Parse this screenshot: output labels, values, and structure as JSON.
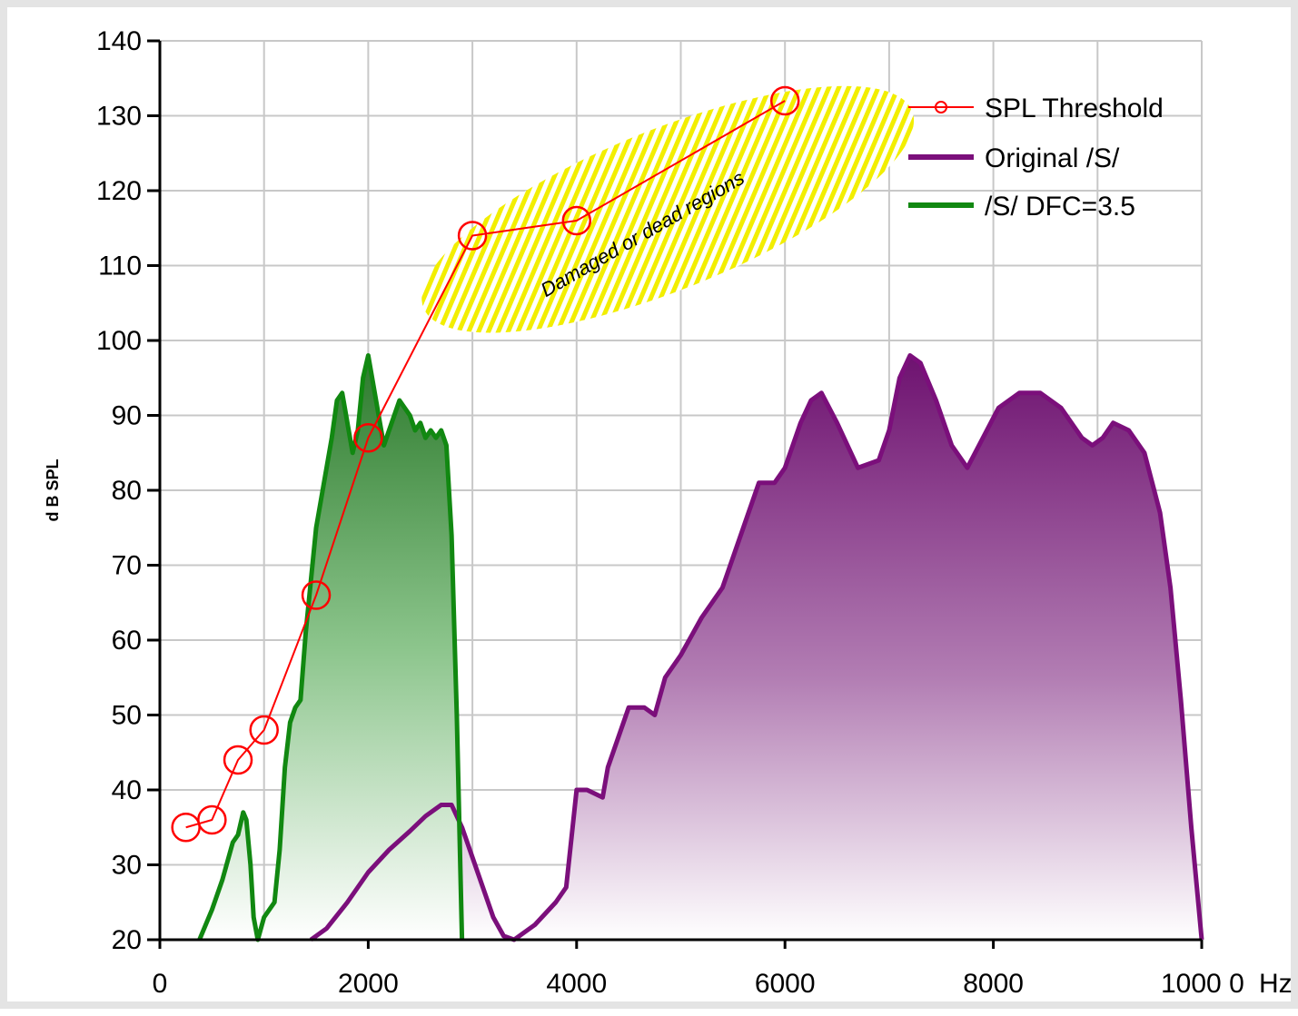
{
  "chart_data": {
    "type": "line",
    "xlabel": "",
    "ylabel": "d B SPL",
    "xlim": [
      0,
      10000
    ],
    "ylim": [
      20,
      140
    ],
    "x_unit_label": "Hz",
    "x_ticks": [
      0,
      2000,
      4000,
      6000,
      8000,
      10000
    ],
    "x_tick_labels": [
      "0",
      "2000",
      "4000",
      "6000",
      "8000",
      "1000 0"
    ],
    "y_ticks": [
      20,
      30,
      40,
      50,
      60,
      70,
      80,
      90,
      100,
      110,
      120,
      130,
      140
    ],
    "y_tick_labels": [
      "20",
      "30",
      "40",
      "50",
      "60",
      "70",
      "80",
      "90",
      "100",
      "110",
      "120",
      "130",
      "140"
    ],
    "grid": true,
    "legend_position": "top-right",
    "annotation": "Damaged or dead regions",
    "colors": {
      "threshold": "#ff0000",
      "original": "#7b0f7b",
      "dfc": "#118811",
      "highlight": "#f2ee00"
    },
    "series": [
      {
        "name": "SPL Threshold",
        "style": "line-marker",
        "points": [
          [
            250,
            35
          ],
          [
            500,
            36
          ],
          [
            750,
            44
          ],
          [
            1000,
            48
          ],
          [
            1500,
            66
          ],
          [
            2000,
            87
          ],
          [
            3000,
            114
          ],
          [
            4000,
            116
          ],
          [
            6000,
            132
          ]
        ]
      },
      {
        "name": "Original /S/",
        "style": "filled-line",
        "points": [
          [
            1450,
            20
          ],
          [
            1600,
            21.5
          ],
          [
            1800,
            25
          ],
          [
            2000,
            29
          ],
          [
            2200,
            32
          ],
          [
            2400,
            34.5
          ],
          [
            2550,
            36.5
          ],
          [
            2700,
            38
          ],
          [
            2800,
            38
          ],
          [
            2900,
            35
          ],
          [
            3000,
            31
          ],
          [
            3100,
            27
          ],
          [
            3200,
            23
          ],
          [
            3300,
            20.5
          ],
          [
            3400,
            20
          ],
          [
            3500,
            21
          ],
          [
            3600,
            22
          ],
          [
            3700,
            23.5
          ],
          [
            3800,
            25
          ],
          [
            3900,
            27
          ],
          [
            4000,
            40
          ],
          [
            4100,
            40
          ],
          [
            4250,
            39
          ],
          [
            4300,
            43
          ],
          [
            4400,
            47
          ],
          [
            4500,
            51
          ],
          [
            4650,
            51
          ],
          [
            4750,
            50
          ],
          [
            4850,
            55
          ],
          [
            5000,
            58
          ],
          [
            5200,
            63
          ],
          [
            5400,
            67
          ],
          [
            5600,
            75
          ],
          [
            5750,
            81
          ],
          [
            5900,
            81
          ],
          [
            6000,
            83
          ],
          [
            6150,
            89
          ],
          [
            6250,
            92
          ],
          [
            6350,
            93
          ],
          [
            6500,
            89
          ],
          [
            6700,
            83
          ],
          [
            6900,
            84
          ],
          [
            7000,
            88
          ],
          [
            7100,
            95
          ],
          [
            7200,
            98
          ],
          [
            7300,
            97
          ],
          [
            7450,
            92
          ],
          [
            7600,
            86
          ],
          [
            7750,
            83
          ],
          [
            7900,
            87
          ],
          [
            8050,
            91
          ],
          [
            8250,
            93
          ],
          [
            8450,
            93
          ],
          [
            8650,
            91
          ],
          [
            8850,
            87
          ],
          [
            8950,
            86
          ],
          [
            9050,
            87
          ],
          [
            9150,
            89
          ],
          [
            9300,
            88
          ],
          [
            9450,
            85
          ],
          [
            9600,
            77
          ],
          [
            9700,
            67
          ],
          [
            9800,
            52
          ],
          [
            9900,
            35
          ],
          [
            10000,
            20
          ]
        ]
      },
      {
        "name": "/S/ DFC=3.5",
        "style": "filled-line",
        "points": [
          [
            380,
            20
          ],
          [
            500,
            24
          ],
          [
            600,
            28
          ],
          [
            700,
            33
          ],
          [
            750,
            34
          ],
          [
            800,
            37
          ],
          [
            830,
            36
          ],
          [
            870,
            30
          ],
          [
            900,
            23
          ],
          [
            940,
            20
          ],
          [
            1000,
            23
          ],
          [
            1100,
            25
          ],
          [
            1150,
            32
          ],
          [
            1200,
            43
          ],
          [
            1250,
            49
          ],
          [
            1300,
            51
          ],
          [
            1350,
            52
          ],
          [
            1400,
            61
          ],
          [
            1450,
            68
          ],
          [
            1500,
            75
          ],
          [
            1550,
            79
          ],
          [
            1600,
            83
          ],
          [
            1650,
            87
          ],
          [
            1700,
            92
          ],
          [
            1750,
            93
          ],
          [
            1800,
            89
          ],
          [
            1850,
            85
          ],
          [
            1900,
            88
          ],
          [
            1950,
            95
          ],
          [
            2000,
            98
          ],
          [
            2050,
            94
          ],
          [
            2100,
            90
          ],
          [
            2150,
            86
          ],
          [
            2200,
            88
          ],
          [
            2250,
            90
          ],
          [
            2300,
            92
          ],
          [
            2350,
            91
          ],
          [
            2400,
            90
          ],
          [
            2450,
            88
          ],
          [
            2500,
            89
          ],
          [
            2550,
            87
          ],
          [
            2600,
            88
          ],
          [
            2650,
            87
          ],
          [
            2700,
            88
          ],
          [
            2750,
            86
          ],
          [
            2800,
            74
          ],
          [
            2850,
            50
          ],
          [
            2900,
            20
          ]
        ]
      }
    ]
  }
}
